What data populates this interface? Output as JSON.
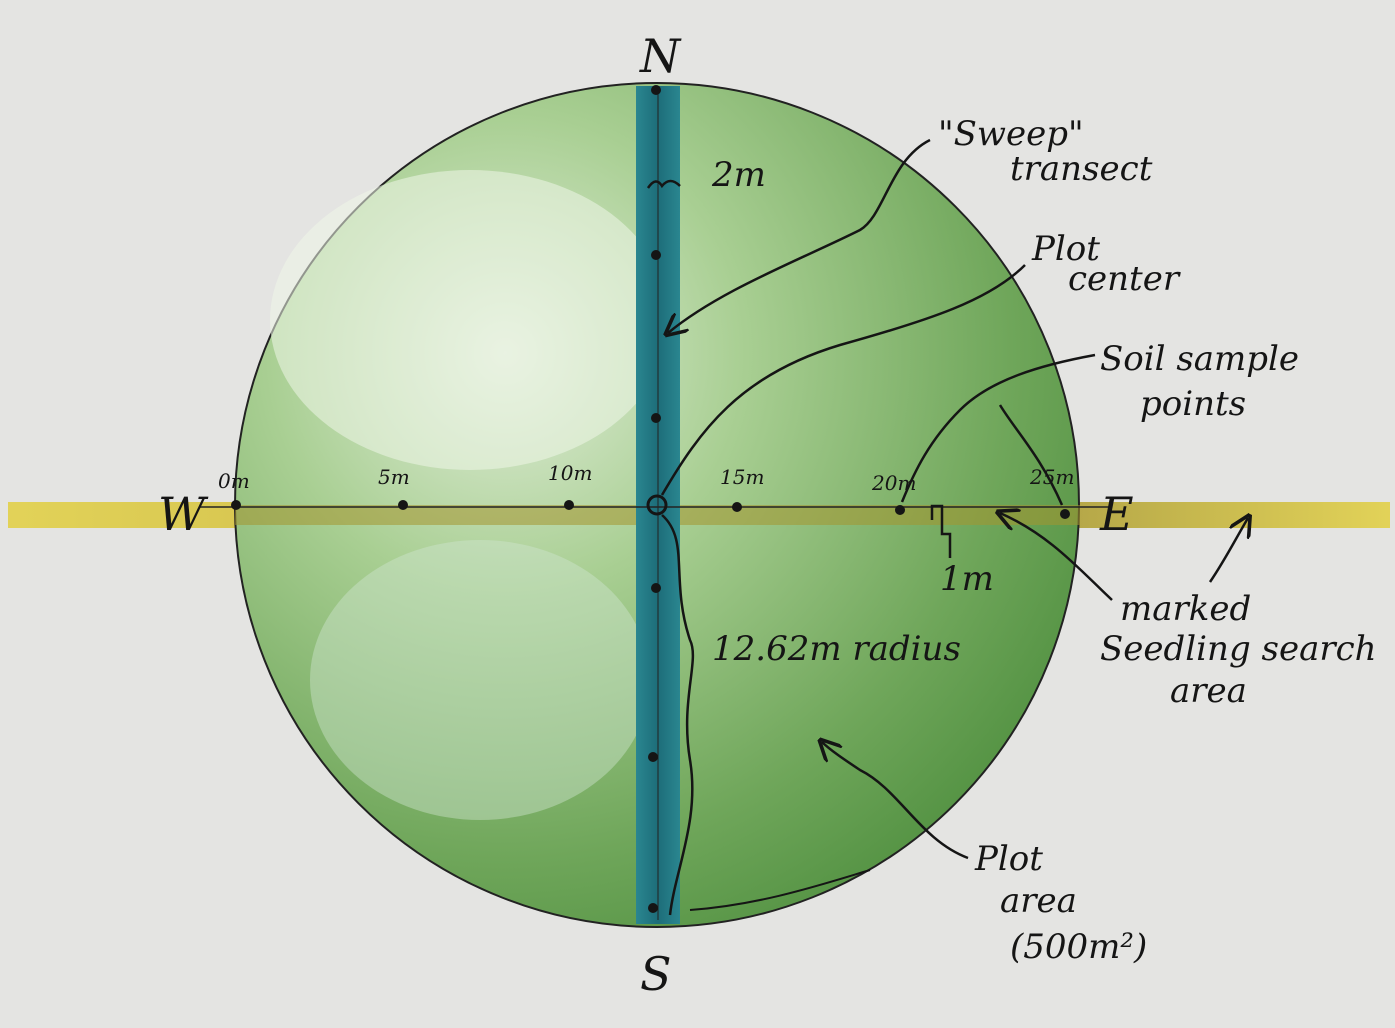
{
  "compass": {
    "north": "N",
    "south": "S",
    "east": "E",
    "west": "W"
  },
  "transect_ticks": [
    "0m",
    "5m",
    "10m",
    "15m",
    "20m",
    "25m"
  ],
  "labels": {
    "sweep_transect": [
      "\"Sweep\"",
      "transect"
    ],
    "plot_center": [
      "Plot",
      "center"
    ],
    "soil_sample_points": [
      "Soil sample",
      "points"
    ],
    "marked_seedling_search_area": [
      "marked",
      "Seedling search",
      "area"
    ],
    "plot_area": [
      "Plot",
      "area",
      "(500m²)"
    ],
    "sweep_width": "2m",
    "search_width": "1m",
    "radius": "12.62m radius"
  },
  "colors": {
    "background": "#e4e4e2",
    "plot_green": "#6fa65a",
    "plot_light": "#c7dfb8",
    "sweep_blue": "#1f6f7c",
    "search_yellow": "#d8c23a",
    "ink": "#151515"
  }
}
